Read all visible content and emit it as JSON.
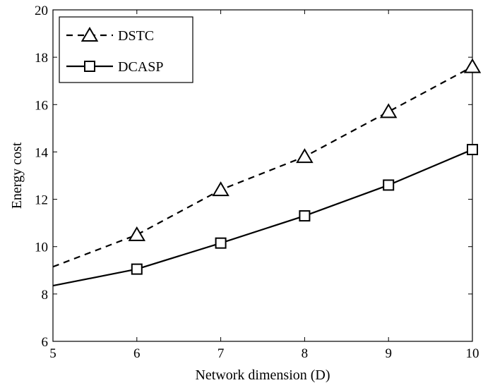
{
  "chart_data": {
    "type": "line",
    "xlabel": "Network dimension (D)",
    "ylabel": "Energy cost",
    "xlim": [
      5,
      10
    ],
    "ylim": [
      6,
      20
    ],
    "x_ticks": [
      "5",
      "6",
      "7",
      "8",
      "9",
      "10"
    ],
    "y_ticks": [
      "6",
      "8",
      "10",
      "12",
      "14",
      "16",
      "18",
      "20"
    ],
    "grid": false,
    "legend_position": "top-left",
    "series": [
      {
        "name": "DSTC",
        "line_style": "dashed",
        "marker": "triangle",
        "color": "#000000",
        "x": [
          5,
          6,
          7,
          8,
          9,
          10
        ],
        "values": [
          9.15,
          10.5,
          12.4,
          13.8,
          15.7,
          17.6
        ],
        "marked": [
          false,
          true,
          true,
          true,
          true,
          true
        ]
      },
      {
        "name": "DCASP",
        "line_style": "solid",
        "marker": "square",
        "color": "#000000",
        "x": [
          5,
          6,
          7,
          8,
          9,
          10
        ],
        "values": [
          8.35,
          9.05,
          10.15,
          11.3,
          12.6,
          14.1
        ],
        "marked": [
          false,
          true,
          true,
          true,
          true,
          true
        ]
      }
    ]
  }
}
